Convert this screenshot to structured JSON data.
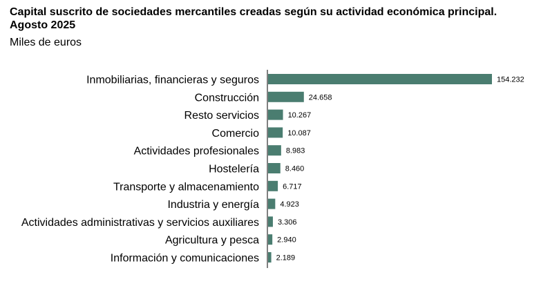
{
  "chart_data": {
    "type": "bar",
    "orientation": "horizontal",
    "title": "Capital suscrito de sociedades mercantiles creadas según su actividad económica principal. Agosto 2025",
    "subtitle": "Miles de euros",
    "categories": [
      "Inmobiliarias, financieras y seguros",
      "Construcción",
      "Resto servicios",
      "Comercio",
      "Actividades profesionales",
      "Hostelería",
      "Transporte y almacenamiento",
      "Industria y energía",
      "Actividades administrativas y servicios auxiliares",
      "Agricultura y pesca",
      "Información y comunicaciones"
    ],
    "values": [
      154232,
      24658,
      10267,
      10087,
      8983,
      8460,
      6717,
      4923,
      3306,
      2940,
      2189
    ],
    "value_labels": [
      "154.232",
      "24.658",
      "10.267",
      "10.087",
      "8.983",
      "8.460",
      "6.717",
      "4.923",
      "3.306",
      "2.940",
      "2.189"
    ],
    "xlim": [
      0,
      154232
    ],
    "bar_color": "#4a7d70",
    "axis_color": "#000000",
    "grid": false,
    "xlabel": "",
    "ylabel": ""
  }
}
